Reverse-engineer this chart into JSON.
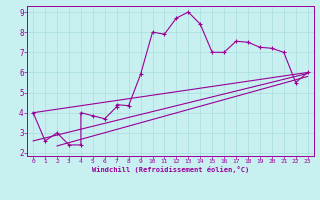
{
  "xlabel": "Windchill (Refroidissement éolien,°C)",
  "bg_color": "#c8f0f0",
  "grid_color": "#aadddd",
  "line_color": "#990099",
  "xlim": [
    -0.5,
    23.5
  ],
  "ylim": [
    1.85,
    9.3
  ],
  "xticks": [
    0,
    1,
    2,
    3,
    4,
    5,
    6,
    7,
    8,
    9,
    10,
    11,
    12,
    13,
    14,
    15,
    16,
    17,
    18,
    19,
    20,
    21,
    22,
    23
  ],
  "yticks": [
    2,
    3,
    4,
    5,
    6,
    7,
    8,
    9
  ],
  "series": [
    [
      0,
      4.0
    ],
    [
      1,
      2.6
    ],
    [
      2,
      3.0
    ],
    [
      3,
      2.4
    ],
    [
      4,
      2.4
    ],
    [
      4,
      4.0
    ],
    [
      5,
      3.85
    ],
    [
      6,
      3.7
    ],
    [
      7,
      4.3
    ],
    [
      7,
      4.4
    ],
    [
      8,
      4.35
    ],
    [
      9,
      5.9
    ],
    [
      10,
      8.0
    ],
    [
      11,
      7.9
    ],
    [
      12,
      8.7
    ],
    [
      13,
      9.0
    ],
    [
      14,
      8.4
    ],
    [
      15,
      7.0
    ],
    [
      16,
      7.0
    ],
    [
      17,
      7.55
    ],
    [
      18,
      7.5
    ],
    [
      19,
      7.25
    ],
    [
      20,
      7.2
    ],
    [
      21,
      7.0
    ],
    [
      22,
      5.5
    ],
    [
      23,
      6.0
    ]
  ],
  "line1": [
    [
      0,
      4.0
    ],
    [
      23,
      6.0
    ]
  ],
  "line2": [
    [
      0,
      2.6
    ],
    [
      23,
      5.95
    ]
  ],
  "line3": [
    [
      2,
      2.35
    ],
    [
      23,
      5.8
    ]
  ]
}
